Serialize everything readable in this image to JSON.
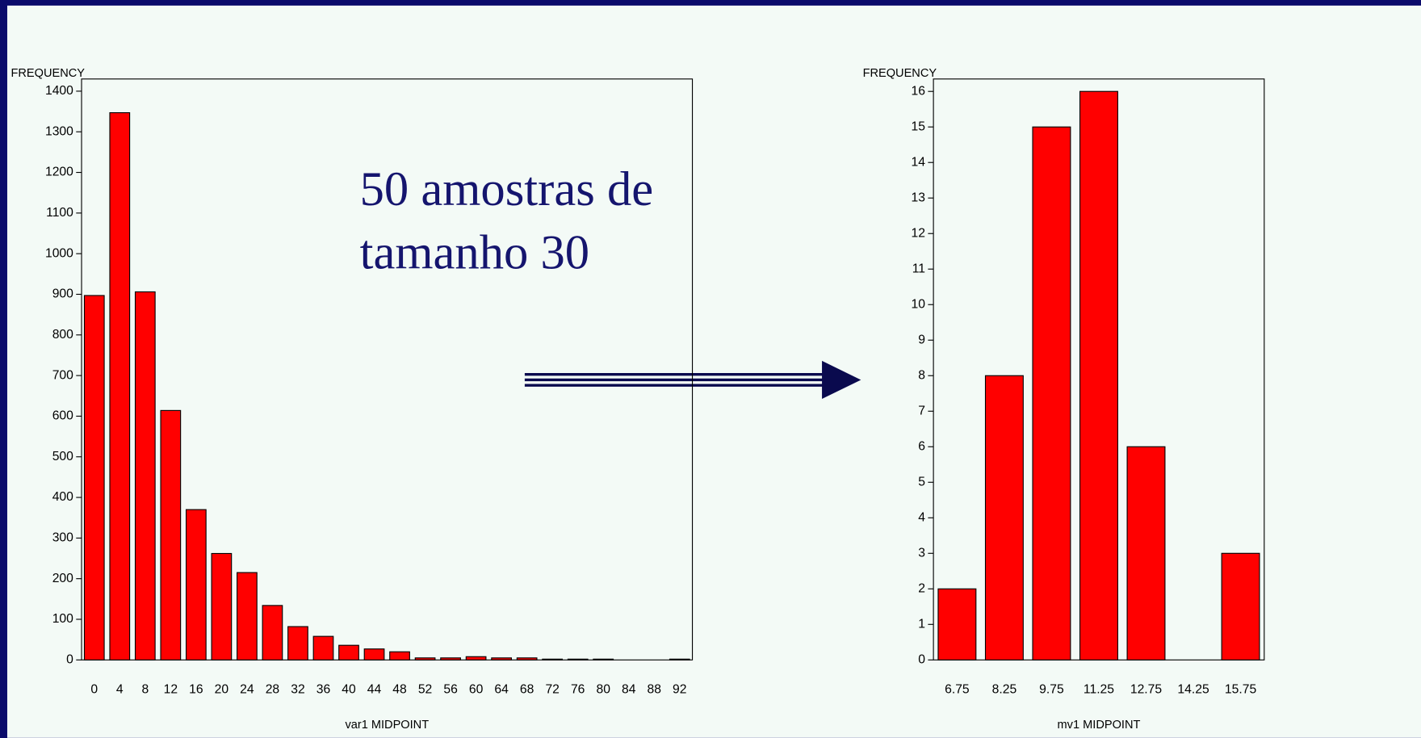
{
  "chart_data": [
    {
      "type": "bar",
      "y_label": "FREQUENCY",
      "x_label": "var1 MIDPOINT",
      "categories": [
        "0",
        "4",
        "8",
        "12",
        "16",
        "20",
        "24",
        "28",
        "32",
        "36",
        "40",
        "44",
        "48",
        "52",
        "56",
        "60",
        "64",
        "68",
        "72",
        "76",
        "80",
        "84",
        "88",
        "92"
      ],
      "values": [
        897,
        1347,
        906,
        614,
        370,
        262,
        215,
        134,
        82,
        58,
        36,
        27,
        20,
        5,
        5,
        8,
        5,
        5,
        2,
        2,
        2,
        0,
        0,
        2
      ],
      "color": "#ff0000",
      "ylim": [
        0,
        1430
      ],
      "yticks": [
        0,
        100,
        200,
        300,
        400,
        500,
        600,
        700,
        800,
        900,
        1000,
        1100,
        1200,
        1300,
        1400
      ],
      "annotation": [
        "50 amostras de",
        "tamanho 30"
      ]
    },
    {
      "type": "bar",
      "y_label": "FREQUENCY",
      "x_label": "mv1 MIDPOINT",
      "categories": [
        "6.75",
        "8.25",
        "9.75",
        "11.25",
        "12.75",
        "14.25",
        "15.75"
      ],
      "values": [
        2,
        8,
        15,
        16,
        6,
        0,
        3
      ],
      "color": "#ff0000",
      "ylim": [
        0,
        16.35
      ],
      "yticks": [
        0,
        1,
        2,
        3,
        4,
        5,
        6,
        7,
        8,
        9,
        10,
        11,
        12,
        13,
        14,
        15,
        16
      ]
    }
  ]
}
